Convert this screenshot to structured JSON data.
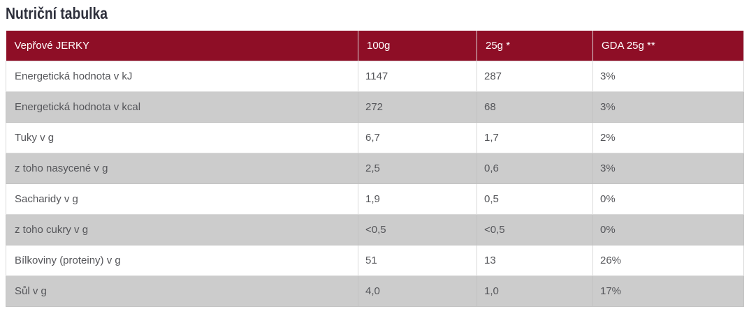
{
  "page": {
    "title": "Nutriční tabulka"
  },
  "colors": {
    "header_bg": "#8e0e26",
    "header_text": "#ffffff",
    "alt_row_bg": "#cccccc",
    "body_text": "#55565a",
    "title_text": "#2d2f3b"
  },
  "table": {
    "header": {
      "product": "Vepřové JERKY",
      "columns": [
        "100g",
        "25g *",
        "GDA 25g **"
      ]
    },
    "rows": [
      {
        "label": "Energetická hodnota v kJ",
        "values": [
          "1147",
          "287",
          "3%"
        ]
      },
      {
        "label": "Energetická hodnota v kcal",
        "values": [
          "272",
          "68",
          "3%"
        ]
      },
      {
        "label": "Tuky v g",
        "values": [
          "6,7",
          "1,7",
          "2%"
        ]
      },
      {
        "label": "z toho nasycené v g",
        "values": [
          "2,5",
          "0,6",
          "3%"
        ]
      },
      {
        "label": "Sacharidy v g",
        "values": [
          "1,9",
          "0,5",
          "0%"
        ]
      },
      {
        "label": "z toho cukry v g",
        "values": [
          "<0,5",
          "<0,5",
          "0%"
        ]
      },
      {
        "label": "Bílkoviny (proteiny) v g",
        "values": [
          "51",
          "13",
          "26%"
        ]
      },
      {
        "label": "Sůl v g",
        "values": [
          "4,0",
          "1,0",
          "17%"
        ]
      }
    ]
  }
}
